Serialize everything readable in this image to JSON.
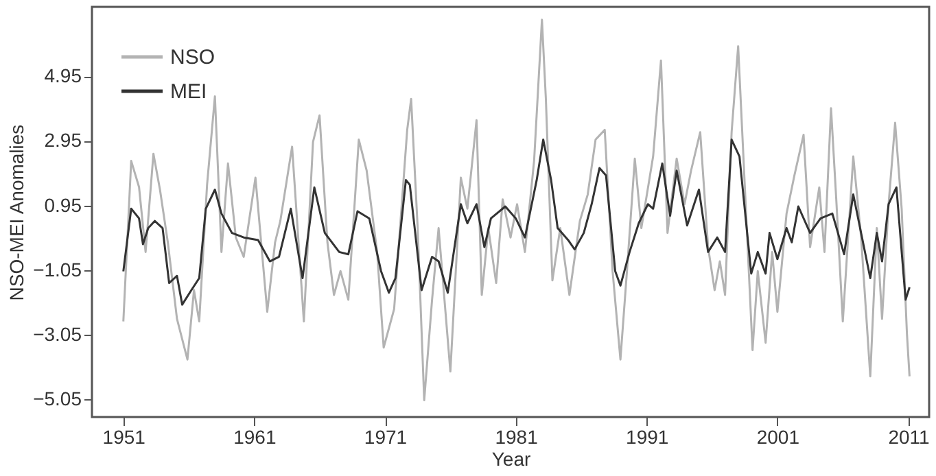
{
  "chart_data": {
    "type": "line",
    "xlabel": "Year",
    "ylabel": "NSO-MEI Anomalies",
    "xlim": [
      1948.6,
      2012.6
    ],
    "ylim": [
      -5.6,
      7.1
    ],
    "xticks": [
      1951,
      1961,
      1971,
      1981,
      1991,
      2001,
      2011
    ],
    "yticks": [
      {
        "value": -5.05,
        "label": "−5.05"
      },
      {
        "value": -3.05,
        "label": "−3.05"
      },
      {
        "value": -1.05,
        "label": "−1.05"
      },
      0.95,
      2.95,
      4.95
    ],
    "grid": false,
    "legend": "top left",
    "line_style": "solid",
    "marker": "none",
    "series": [
      {
        "name": "NSO",
        "color": "#b3b3b3",
        "x": [
          1951.0,
          1951.6,
          1952.2,
          1952.7,
          1953.3,
          1953.8,
          1954.4,
          1955.1,
          1955.9,
          1956.4,
          1956.8,
          1957.4,
          1958.0,
          1958.5,
          1959.0,
          1959.6,
          1960.2,
          1961.1,
          1962.0,
          1962.6,
          1963.0,
          1963.9,
          1964.8,
          1965.5,
          1966.0,
          1966.6,
          1967.1,
          1967.6,
          1968.2,
          1969.0,
          1969.6,
          1970.4,
          1970.9,
          1971.7,
          1972.7,
          1973.0,
          1973.5,
          1974.0,
          1974.6,
          1975.1,
          1976.0,
          1976.8,
          1977.3,
          1978.0,
          1978.4,
          1978.9,
          1979.5,
          1980.0,
          1980.6,
          1981.1,
          1981.7,
          1982.4,
          1983.0,
          1983.3,
          1983.8,
          1984.4,
          1985.1,
          1985.9,
          1986.5,
          1987.1,
          1987.8,
          1988.4,
          1989.0,
          1989.5,
          1990.1,
          1990.6,
          1991.5,
          1992.1,
          1992.6,
          1993.3,
          1993.9,
          1994.4,
          1995.1,
          1995.7,
          1996.2,
          1996.6,
          1997.0,
          1997.5,
          1998.0,
          1998.4,
          1999.1,
          1999.5,
          2000.1,
          2000.6,
          2001.0,
          2001.7,
          2002.3,
          2003.0,
          2003.5,
          2004.2,
          2004.6,
          2005.1,
          2005.5,
          2006.0,
          2006.8,
          2007.4,
          2008.1,
          2008.6,
          2009.0,
          2009.5,
          2010.0,
          2010.5,
          2010.9,
          2011.1
        ],
        "values": [
          -2.64,
          2.33,
          1.52,
          -0.49,
          2.55,
          1.44,
          -0.19,
          -2.56,
          -3.82,
          -1.67,
          -2.64,
          1.59,
          4.33,
          -0.49,
          2.25,
          -0.04,
          -0.64,
          1.81,
          -2.34,
          -0.19,
          0.47,
          2.77,
          -2.64,
          2.92,
          3.74,
          -0.19,
          -1.82,
          -1.08,
          -1.97,
          2.99,
          2.03,
          -0.49,
          -3.45,
          -2.26,
          3.29,
          4.25,
          0.25,
          -5.08,
          -1.97,
          0.25,
          -4.19,
          1.81,
          0.85,
          3.59,
          -1.82,
          0.25,
          -1.45,
          1.14,
          -0.04,
          0.99,
          -0.49,
          2.33,
          6.7,
          4.25,
          -1.37,
          0.25,
          -1.82,
          0.47,
          1.29,
          2.99,
          3.29,
          -1.08,
          -3.82,
          -1.08,
          2.4,
          0.25,
          2.47,
          5.44,
          0.1,
          2.4,
          0.99,
          2.03,
          3.22,
          -0.34,
          -1.67,
          -0.78,
          -1.82,
          3.22,
          5.88,
          2.47,
          -3.53,
          -1.08,
          -3.3,
          -0.49,
          -2.34,
          0.7,
          1.88,
          3.14,
          -0.34,
          1.51,
          -0.49,
          3.96,
          1.14,
          -2.64,
          2.47,
          -0.04,
          -4.34,
          0.25,
          -2.56,
          0.99,
          3.51,
          0.85,
          -3.0,
          -4.34
        ]
      },
      {
        "name": "MEI",
        "color": "#333333",
        "x": [
          1951.0,
          1951.6,
          1952.2,
          1952.5,
          1952.9,
          1953.4,
          1954.0,
          1954.5,
          1955.1,
          1955.5,
          1956.2,
          1956.8,
          1957.3,
          1958.0,
          1958.5,
          1959.3,
          1960.2,
          1961.3,
          1962.2,
          1962.9,
          1963.8,
          1964.7,
          1965.6,
          1966.4,
          1967.5,
          1968.2,
          1968.9,
          1969.8,
          1970.7,
          1971.3,
          1971.8,
          1972.6,
          1972.9,
          1973.8,
          1974.6,
          1975.1,
          1975.8,
          1976.8,
          1977.3,
          1978.0,
          1978.6,
          1979.1,
          1980.2,
          1981.0,
          1981.7,
          1982.6,
          1983.1,
          1983.7,
          1984.2,
          1985.0,
          1985.5,
          1986.2,
          1986.8,
          1987.4,
          1987.9,
          1988.6,
          1989.0,
          1989.7,
          1990.4,
          1991.1,
          1991.5,
          1992.2,
          1992.8,
          1993.3,
          1994.1,
          1995.0,
          1995.7,
          1996.4,
          1997.0,
          1997.5,
          1998.1,
          1999.0,
          1999.5,
          2000.1,
          2000.4,
          2001.0,
          2001.7,
          2002.1,
          2002.6,
          2003.5,
          2004.3,
          2005.2,
          2006.1,
          2006.8,
          2008.1,
          2008.6,
          2009.0,
          2009.5,
          2010.1,
          2010.8,
          2011.1
        ],
        "values": [
          -1.09,
          0.85,
          0.55,
          -0.25,
          0.25,
          0.47,
          0.25,
          -1.45,
          -1.23,
          -2.12,
          -1.67,
          -1.3,
          0.85,
          1.44,
          0.7,
          0.1,
          -0.04,
          -0.12,
          -0.78,
          -0.64,
          0.85,
          -1.3,
          1.51,
          0.1,
          -0.49,
          -0.56,
          0.77,
          0.55,
          -1.08,
          -1.75,
          -1.3,
          1.74,
          1.59,
          -1.67,
          -0.64,
          -0.78,
          -1.75,
          0.99,
          0.4,
          0.99,
          -0.34,
          0.55,
          0.92,
          0.55,
          -0.04,
          1.74,
          2.99,
          1.74,
          0.25,
          -0.12,
          -0.41,
          0.1,
          0.99,
          2.11,
          1.88,
          -1.08,
          -1.53,
          -0.49,
          0.4,
          0.99,
          0.85,
          2.25,
          0.63,
          2.03,
          0.33,
          1.44,
          -0.49,
          -0.04,
          -0.49,
          2.99,
          2.47,
          -1.16,
          -0.49,
          -1.16,
          0.1,
          -0.71,
          0.25,
          -0.19,
          0.92,
          0.1,
          0.55,
          0.7,
          -0.56,
          1.29,
          -1.3,
          0.1,
          -0.78,
          0.99,
          1.51,
          -1.97,
          -1.58
        ]
      }
    ]
  }
}
